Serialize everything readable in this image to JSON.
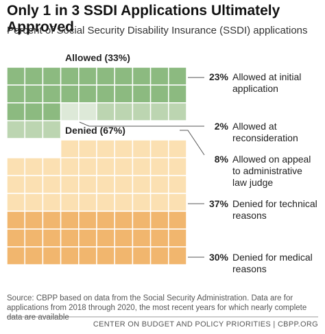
{
  "chart_data": {
    "type": "waffle",
    "title": "Only 1 in 3 SSDI Applications Ultimately Approved",
    "subtitle": "Percent of Social Security Disability Insurance (SSDI) applications",
    "groups": [
      {
        "name": "Allowed (33%)",
        "segments": [
          0,
          1,
          2
        ]
      },
      {
        "name": "Denied (67%)",
        "segments": [
          3,
          4
        ]
      }
    ],
    "series": [
      {
        "name": "Allowed at initial application",
        "values": [
          23
        ],
        "value_labels": [
          "23%"
        ],
        "color": "#8cba80"
      },
      {
        "name": "Allowed at reconsideration",
        "values": [
          2
        ],
        "value_labels": [
          "2%"
        ],
        "color": "#dde9d8"
      },
      {
        "name": "Allowed on appeal to administrative law judge",
        "values": [
          8
        ],
        "value_labels": [
          "8%"
        ],
        "color": "#bcd5b1"
      },
      {
        "name": "Denied for technical reasons",
        "values": [
          37
        ],
        "value_labels": [
          "37%"
        ],
        "color": "#fbe0b2"
      },
      {
        "name": "Denied for medical reasons",
        "values": [
          30
        ],
        "value_labels": [
          "30%"
        ],
        "color": "#f1b66e"
      }
    ],
    "source": "Source: CBPP based on data from the Social Security Administration. Data are for applications from 2018 through 2020, the most recent years for which nearly complete data are available",
    "footer": "CENTER ON BUDGET AND POLICY PRIORITIES | CBPP.ORG"
  }
}
